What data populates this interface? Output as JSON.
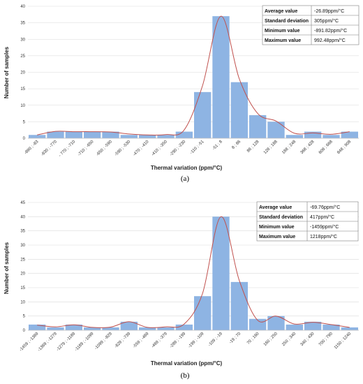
{
  "chart_data": [
    {
      "type": "bar",
      "caption": "(a)",
      "xlabel": "Thermal variation (ppm/°C)",
      "ylabel": "Number of samples",
      "ylim": [
        0,
        40
      ],
      "yticks": [
        0,
        5,
        10,
        15,
        20,
        25,
        30,
        35,
        40
      ],
      "categories": [
        "-890 ; -83",
        "-830 ; -770",
        "- 770 ; -710",
        "-710 ; -650",
        "-650 ; -590",
        "-590 ; -530",
        "-470 ; -410",
        "-410 ; -350",
        "-290 ; -230",
        "-110 ; -51",
        "-51 ; 8",
        "8 ; 86",
        "86 ; 128",
        "128 ; 188",
        "188 ; 248",
        "368 ; 428",
        "608 ; 668",
        "848 ; 908"
      ],
      "values": [
        1,
        2,
        2,
        2,
        2,
        1,
        1,
        1,
        2,
        14,
        37,
        17,
        7,
        5,
        1,
        2,
        1,
        2
      ],
      "curve": [
        1,
        2.1,
        2.0,
        2.0,
        1.9,
        1.3,
        1.0,
        1.1,
        2.5,
        16,
        37,
        18,
        7.5,
        5.2,
        1.5,
        1.6,
        1.2,
        2
      ],
      "bar_color": "#8EB4E3",
      "curve_color": "#C0504D",
      "stats": [
        {
          "label": "Average value",
          "value": "-26.89ppm/°C"
        },
        {
          "label": "Standard deviation",
          "value": "305ppm/°C"
        },
        {
          "label": "Minimum value",
          "value": "-891.82ppm/°C"
        },
        {
          "label": "Maximum value",
          "value": "992.48ppm/°C"
        }
      ]
    },
    {
      "type": "bar",
      "caption": "(b)",
      "xlabel": "Thermal variation (ppm/°C)",
      "ylabel": "Number of samples",
      "ylim": [
        0,
        45
      ],
      "yticks": [
        0,
        5,
        10,
        15,
        20,
        25,
        30,
        35,
        40,
        45
      ],
      "categories": [
        "-1459 ; -1369",
        "-1369 ; -1279",
        "-1279 ; -1189",
        "-1189 ; -1099",
        "-1099 ; -829",
        "-829 ; -739",
        "-559 ; -469",
        "-469 ; -379",
        "-289 ; -199",
        "-199 ; -109",
        "-109 ; -19",
        "-19 ; 70",
        "70 ; 160",
        "160 ; 250",
        "250 ; 340",
        "340 ; 430",
        "700 ; 790",
        "1150 ; 1240"
      ],
      "values": [
        2,
        1,
        2,
        1,
        1,
        3,
        1,
        1,
        2,
        12,
        40,
        17,
        4,
        5,
        2,
        3,
        2,
        1
      ],
      "curve": [
        1.8,
        1.2,
        1.9,
        1.0,
        1.1,
        3.0,
        1.0,
        1.2,
        2.2,
        13,
        40,
        17.5,
        3.5,
        5.0,
        2.2,
        2.8,
        2.0,
        1
      ],
      "bar_color": "#8EB4E3",
      "curve_color": "#C0504D",
      "stats": [
        {
          "label": "Average value",
          "value": "-69.76ppm/°C"
        },
        {
          "label": "Standard deviation",
          "value": "417ppm/°C"
        },
        {
          "label": "Minimum value",
          "value": "-1459ppm/°C"
        },
        {
          "label": "Maximum value",
          "value": "1218ppm/°C"
        }
      ]
    }
  ]
}
